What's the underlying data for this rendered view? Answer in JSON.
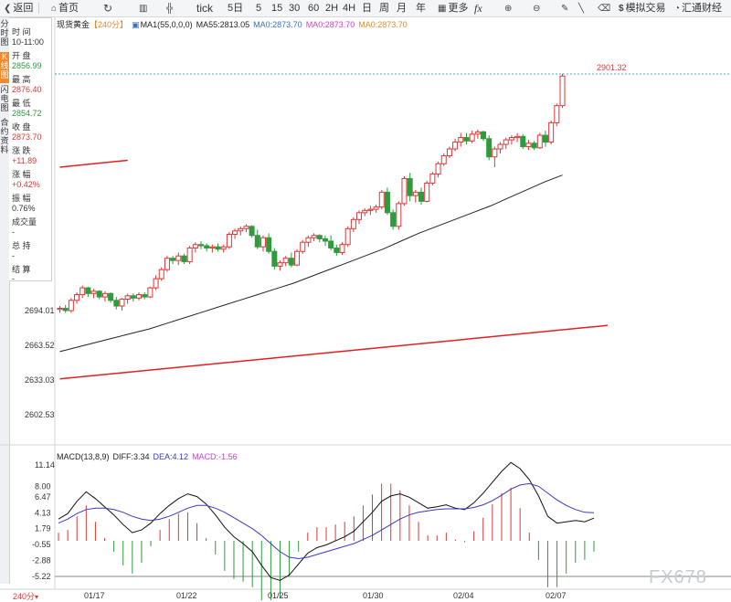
{
  "toolbar": {
    "back": "返回",
    "home": "首页",
    "tick": "tick",
    "periods": [
      "5日",
      "5",
      "15",
      "30",
      "60",
      "2H",
      "4H",
      "日",
      "周",
      "月",
      "年"
    ],
    "more": "更多",
    "fx": "fx",
    "mock_trade": "模拟交易",
    "hui_tong": "汇通财经"
  },
  "side_tabs": [
    "分时图",
    "K线图",
    "闪电图",
    "合约资料"
  ],
  "info": {
    "time_label": "时 间",
    "time_value": "10-11:00",
    "open_label": "开 盘",
    "open_value": "2856.99",
    "high_label": "最 高",
    "high_value": "2876.40",
    "low_label": "最 低",
    "low_value": "2854.72",
    "close_label": "收 盘",
    "close_value": "2873.70",
    "change_label": "涨 跌",
    "change_value": "+11.89",
    "pct_label": "涨 幅",
    "pct_value": "+0.42%",
    "amp_label": "振 幅",
    "amp_value": "0.76%",
    "volume_label": "成交量",
    "volume_value": "-",
    "oi_label": "总 持",
    "oi_value": "-",
    "settle_label": "结 算",
    "settle_value": "-"
  },
  "legend": {
    "symbol": "现货黄金",
    "period": "【240分】",
    "ma_set": "MA1(55,0,0,0)",
    "ma55": "MA55:2813.05",
    "ma0a": "MA0:2873.70",
    "ma0b": "MA0:2873.70",
    "ma0c": "MA0:2873.70"
  },
  "macd_legend": {
    "name": "MACD(13,8,9)",
    "diff": "DIFF:3.34",
    "dea": "DEA:4.12",
    "macd": "MACD:-1.56"
  },
  "period_badge": "240分",
  "watermark": "FX678",
  "colors": {
    "up": "#e03535",
    "down": "#2e9b3c",
    "ma55": "#222222",
    "trendline": "#e02020",
    "dea": "#3a3ab8",
    "diff": "#111111"
  },
  "chart_data": [
    {
      "type": "candlestick",
      "title": "",
      "y_ticks": [
        2694.01,
        2663.52,
        2633.03,
        2602.53
      ],
      "x_ticks": [
        "01/17",
        "01/22",
        "01/25",
        "01/30",
        "02/04",
        "02/07"
      ],
      "last_price_label": "2901.32",
      "candles": [
        [
          2695,
          2698,
          2692,
          2696
        ],
        [
          2696,
          2699,
          2692,
          2694
        ],
        [
          2694,
          2705,
          2692,
          2703
        ],
        [
          2703,
          2710,
          2700,
          2708
        ],
        [
          2708,
          2716,
          2705,
          2714
        ],
        [
          2714,
          2715,
          2706,
          2709
        ],
        [
          2709,
          2713,
          2705,
          2711
        ],
        [
          2711,
          2712,
          2704,
          2706
        ],
        [
          2706,
          2711,
          2702,
          2709
        ],
        [
          2709,
          2710,
          2701,
          2703
        ],
        [
          2703,
          2706,
          2695,
          2698
        ],
        [
          2698,
          2705,
          2694,
          2704
        ],
        [
          2704,
          2709,
          2700,
          2707
        ],
        [
          2707,
          2709,
          2702,
          2705
        ],
        [
          2705,
          2710,
          2703,
          2708
        ],
        [
          2708,
          2710,
          2704,
          2706
        ],
        [
          2706,
          2715,
          2705,
          2714
        ],
        [
          2714,
          2725,
          2712,
          2722
        ],
        [
          2722,
          2732,
          2720,
          2730
        ],
        [
          2730,
          2742,
          2728,
          2740
        ],
        [
          2740,
          2742,
          2735,
          2738
        ],
        [
          2738,
          2745,
          2734,
          2742
        ],
        [
          2742,
          2744,
          2735,
          2737
        ],
        [
          2737,
          2751,
          2735,
          2749
        ],
        [
          2749,
          2754,
          2745,
          2752
        ],
        [
          2752,
          2755,
          2748,
          2751
        ],
        [
          2751,
          2753,
          2746,
          2749
        ],
        [
          2749,
          2752,
          2745,
          2750
        ],
        [
          2750,
          2753,
          2746,
          2748
        ],
        [
          2748,
          2752,
          2745,
          2750
        ],
        [
          2750,
          2763,
          2748,
          2761
        ],
        [
          2761,
          2766,
          2757,
          2764
        ],
        [
          2764,
          2768,
          2760,
          2766
        ],
        [
          2766,
          2770,
          2763,
          2768
        ],
        [
          2768,
          2769,
          2758,
          2760
        ],
        [
          2760,
          2765,
          2748,
          2750
        ],
        [
          2750,
          2760,
          2746,
          2758
        ],
        [
          2758,
          2762,
          2744,
          2746
        ],
        [
          2746,
          2749,
          2730,
          2733
        ],
        [
          2733,
          2738,
          2729,
          2736
        ],
        [
          2736,
          2742,
          2733,
          2740
        ],
        [
          2740,
          2745,
          2732,
          2734
        ],
        [
          2734,
          2748,
          2733,
          2746
        ],
        [
          2746,
          2756,
          2744,
          2754
        ],
        [
          2754,
          2760,
          2750,
          2758
        ],
        [
          2758,
          2762,
          2755,
          2760
        ],
        [
          2760,
          2761,
          2754,
          2757
        ],
        [
          2757,
          2760,
          2751,
          2755
        ],
        [
          2755,
          2760,
          2747,
          2749
        ],
        [
          2749,
          2752,
          2742,
          2745
        ],
        [
          2745,
          2754,
          2743,
          2752
        ],
        [
          2752,
          2768,
          2750,
          2766
        ],
        [
          2766,
          2776,
          2763,
          2774
        ],
        [
          2774,
          2782,
          2770,
          2780
        ],
        [
          2780,
          2784,
          2777,
          2782
        ],
        [
          2782,
          2786,
          2778,
          2783
        ],
        [
          2783,
          2787,
          2780,
          2785
        ],
        [
          2785,
          2800,
          2783,
          2798
        ],
        [
          2798,
          2802,
          2778,
          2780
        ],
        [
          2780,
          2783,
          2765,
          2768
        ],
        [
          2768,
          2790,
          2765,
          2788
        ],
        [
          2788,
          2812,
          2786,
          2810
        ],
        [
          2810,
          2815,
          2790,
          2795
        ],
        [
          2795,
          2800,
          2789,
          2798
        ],
        [
          2798,
          2802,
          2787,
          2790
        ],
        [
          2790,
          2808,
          2789,
          2806
        ],
        [
          2806,
          2816,
          2804,
          2814
        ],
        [
          2814,
          2825,
          2811,
          2823
        ],
        [
          2823,
          2832,
          2821,
          2830
        ],
        [
          2830,
          2838,
          2828,
          2836
        ],
        [
          2836,
          2845,
          2834,
          2842
        ],
        [
          2842,
          2850,
          2838,
          2846
        ],
        [
          2846,
          2850,
          2840,
          2843
        ],
        [
          2843,
          2852,
          2841,
          2849
        ],
        [
          2849,
          2853,
          2845,
          2851
        ],
        [
          2851,
          2852,
          2843,
          2845
        ],
        [
          2845,
          2848,
          2826,
          2829
        ],
        [
          2829,
          2838,
          2820,
          2836
        ],
        [
          2836,
          2842,
          2832,
          2840
        ],
        [
          2840,
          2846,
          2836,
          2844
        ],
        [
          2844,
          2848,
          2840,
          2846
        ],
        [
          2846,
          2850,
          2842,
          2847
        ],
        [
          2847,
          2849,
          2836,
          2838
        ],
        [
          2838,
          2844,
          2835,
          2841
        ],
        [
          2841,
          2843,
          2835,
          2837
        ],
        [
          2837,
          2850,
          2836,
          2848
        ],
        [
          2848,
          2852,
          2838,
          2842
        ],
        [
          2842,
          2861,
          2840,
          2859
        ],
        [
          2859,
          2876,
          2856,
          2874
        ],
        [
          2874,
          2902,
          2872,
          2900
        ]
      ],
      "ma55": [
        2658,
        2662,
        2666,
        2670,
        2674,
        2678,
        2683,
        2688,
        2693,
        2698,
        2703,
        2708,
        2713,
        2718,
        2724,
        2730,
        2736,
        2742,
        2748,
        2755,
        2762,
        2768,
        2774,
        2780,
        2786,
        2793,
        2800,
        2807,
        2813
      ],
      "trendline": {
        "from": [
          0,
          2634
        ],
        "to": [
          97,
          2681
        ]
      },
      "trendline_upper": {
        "from": [
          0,
          2820
        ],
        "to": [
          12,
          2826
        ]
      }
    },
    {
      "type": "macd",
      "y_ticks": [
        11.14,
        8.0,
        6.47,
        4.13,
        1.79,
        -0.55,
        -2.88,
        -5.22
      ],
      "diff": [
        3.2,
        4.0,
        5.8,
        7.2,
        6.2,
        5.0,
        3.8,
        2.4,
        1.2,
        1.6,
        2.6,
        4.0,
        5.2,
        6.2,
        6.9,
        6.5,
        5.4,
        3.8,
        2.0,
        0.6,
        -0.4,
        -1.6,
        -3.6,
        -5.4,
        -5.8,
        -5.0,
        -3.4,
        -1.8,
        -1.0,
        -0.6,
        0.0,
        0.6,
        1.4,
        2.8,
        4.2,
        5.8,
        6.6,
        6.9,
        6.4,
        5.6,
        4.8,
        5.0,
        5.3,
        4.8,
        4.6,
        5.6,
        7.0,
        8.6,
        10.2,
        11.5,
        10.6,
        9.0,
        6.6,
        3.6,
        2.6,
        2.8,
        3.0,
        2.8,
        3.34
      ],
      "dea": [
        2.6,
        3.2,
        4.0,
        4.6,
        4.8,
        4.8,
        4.6,
        4.2,
        3.6,
        3.2,
        3.0,
        3.2,
        3.6,
        4.2,
        4.8,
        5.2,
        5.2,
        4.8,
        4.2,
        3.4,
        2.6,
        1.8,
        0.8,
        -0.4,
        -1.6,
        -2.4,
        -2.6,
        -2.4,
        -2.0,
        -1.6,
        -1.2,
        -0.8,
        -0.4,
        0.2,
        0.8,
        1.6,
        2.4,
        3.2,
        3.8,
        4.2,
        4.4,
        4.6,
        4.7,
        4.7,
        4.7,
        4.9,
        5.3,
        5.9,
        6.7,
        7.6,
        8.2,
        8.4,
        8.0,
        7.0,
        6.0,
        5.2,
        4.6,
        4.2,
        4.12
      ],
      "hist": [
        1.2,
        1.6,
        3.6,
        5.2,
        2.8,
        0.4,
        -1.6,
        -3.6,
        -4.8,
        -3.2,
        -0.8,
        1.6,
        3.2,
        4.0,
        4.2,
        2.6,
        0.4,
        -2.0,
        -4.4,
        -5.6,
        -6.0,
        -6.8,
        -8.8,
        -10.0,
        -8.4,
        -5.2,
        -1.6,
        1.2,
        2.0,
        2.0,
        2.4,
        2.8,
        3.6,
        5.2,
        6.8,
        8.4,
        8.4,
        7.4,
        5.2,
        2.8,
        0.8,
        0.8,
        1.2,
        0.2,
        -0.2,
        1.4,
        3.4,
        5.4,
        7.0,
        7.8,
        4.8,
        1.2,
        -2.8,
        -6.8,
        -6.8,
        -4.8,
        -3.2,
        -2.8,
        -1.56
      ]
    }
  ]
}
